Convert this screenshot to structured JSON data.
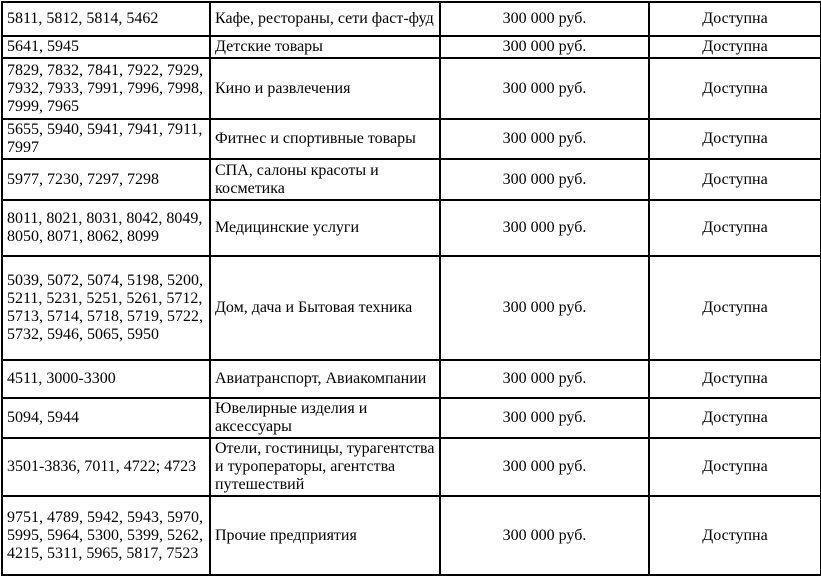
{
  "table": {
    "columns": [
      {
        "key": "codes"
      },
      {
        "key": "category"
      },
      {
        "key": "limit"
      },
      {
        "key": "status"
      }
    ],
    "rows": [
      {
        "codes": "5811, 5812, 5814, 5462",
        "category": "Кафе, рестораны, сети фаст-фуд",
        "limit": "300 000 руб.",
        "status": "Доступна"
      },
      {
        "codes": "5641, 5945",
        "category": "Детские товары",
        "limit": "300 000 руб.",
        "status": "Доступна"
      },
      {
        "codes": "7829, 7832, 7841, 7922, 7929, 7932, 7933, 7991, 7996, 7998, 7999, 7965",
        "category": "Кино и развлечения",
        "limit": "300 000 руб.",
        "status": "Доступна"
      },
      {
        "codes": "5655, 5940, 5941, 7941, 7911, 7997",
        "category": "Фитнес и спортивные товары",
        "limit": "300 000 руб.",
        "status": "Доступна"
      },
      {
        "codes": "5977, 7230, 7297, 7298",
        "category": "СПА, салоны красоты и косметика",
        "limit": "300 000 руб.",
        "status": "Доступна"
      },
      {
        "codes": "8011, 8021, 8031, 8042, 8049, 8050, 8071, 8062, 8099",
        "category": "Медицинские услуги",
        "limit": "300 000 руб.",
        "status": "Доступна"
      },
      {
        "codes": "5039, 5072, 5074, 5198, 5200, 5211, 5231, 5251, 5261, 5712, 5713, 5714, 5718, 5719, 5722, 5732, 5946, 5065, 5950",
        "category": "Дом, дача  и Бытовая техника",
        "limit": "300 000 руб.",
        "status": "Доступна"
      },
      {
        "codes": "4511, 3000-3300",
        "category": "Авиатранспорт, Авиакомпании",
        "limit": "300 000 руб.",
        "status": "Доступна"
      },
      {
        "codes": "5094, 5944",
        "category": "Ювелирные изделия и аксессуары",
        "limit": "300 000 руб.",
        "status": "Доступна"
      },
      {
        "codes": "3501-3836, 7011, 4722; 4723",
        "category": "Отели, гостиницы, турагентства и туроператоры, агентства путешествий",
        "limit": "300 000 руб.",
        "status": "Доступна"
      },
      {
        "codes": "9751, 4789, 5942, 5943, 5970, 5995, 5964, 5300, 5399, 5262, 4215, 5311, 5965, 5817, 7523",
        "category": "Прочие предприятия",
        "limit": "300 000 руб.",
        "status": "Доступна"
      }
    ]
  }
}
